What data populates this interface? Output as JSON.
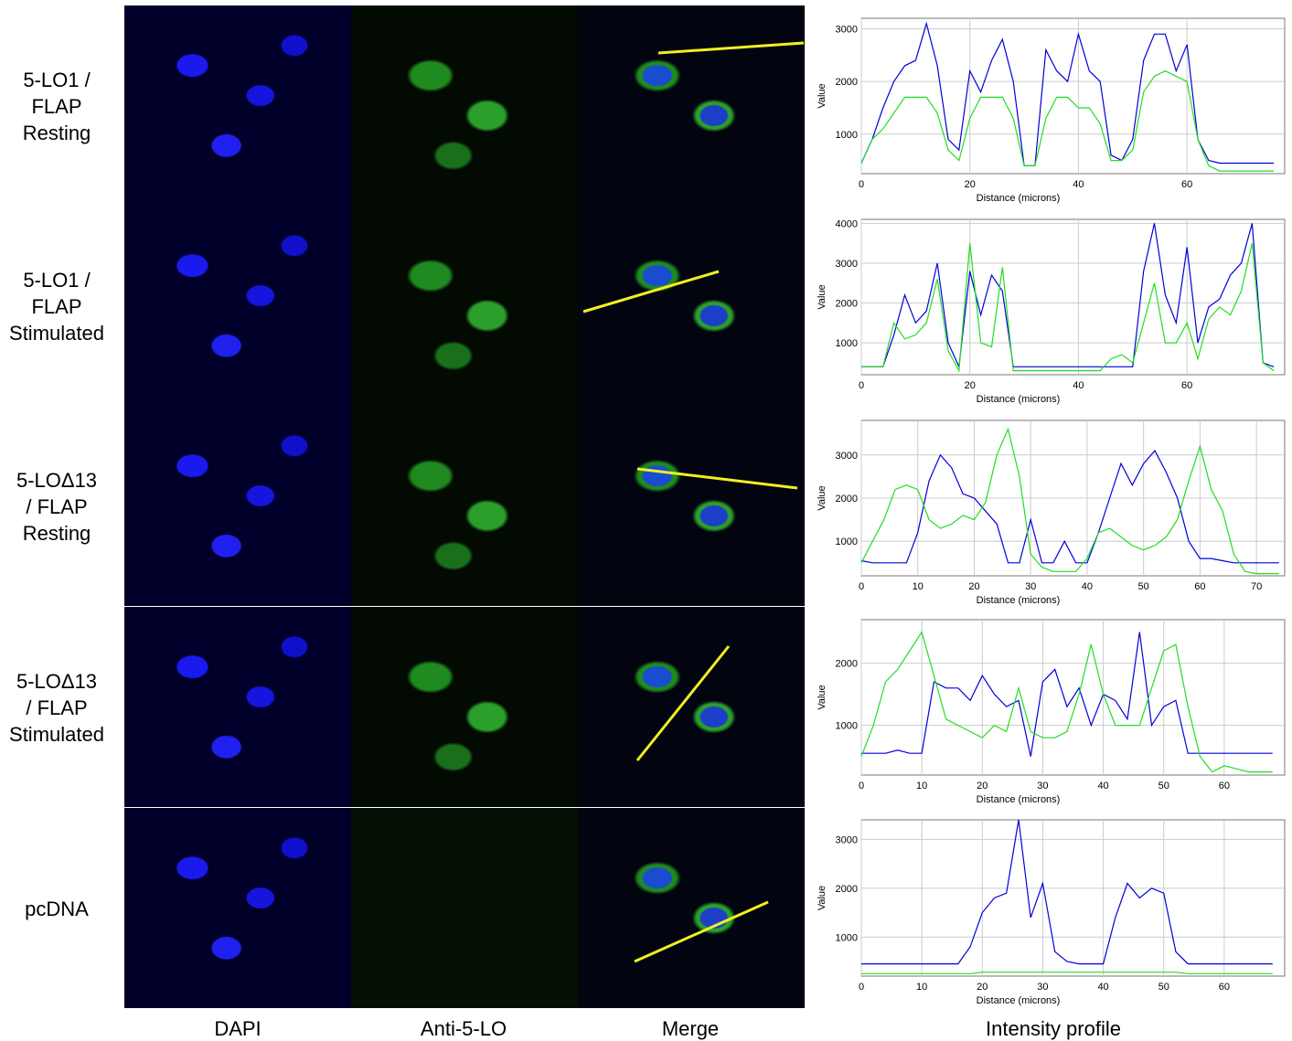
{
  "row_labels": [
    [
      "5-LO1 /",
      "FLAP",
      "Resting"
    ],
    [
      "5-LO1 /",
      "FLAP",
      "Stimulated"
    ],
    [
      "5-LOΔ13",
      "/ FLAP",
      "Resting"
    ],
    [
      "5-LOΔ13",
      "/ FLAP",
      "Stimulated"
    ],
    [
      "pcDNA"
    ]
  ],
  "column_labels": [
    "DAPI",
    "Anti-5-LO",
    "Merge",
    "Intensity profile"
  ],
  "chart_data": [
    {
      "type": "line",
      "x_label": "Distance (microns)",
      "y_label": "Value",
      "grid": true,
      "xlim": [
        0,
        78
      ],
      "ylim": [
        250,
        3200
      ],
      "xticks": [
        0,
        20,
        40,
        60
      ],
      "yticks": [
        1000,
        2000,
        3000
      ],
      "x": [
        0,
        2,
        4,
        6,
        8,
        10,
        12,
        14,
        16,
        18,
        20,
        22,
        24,
        26,
        28,
        30,
        32,
        34,
        36,
        38,
        40,
        42,
        44,
        46,
        48,
        50,
        52,
        54,
        56,
        58,
        60,
        62,
        64,
        66,
        68,
        70,
        72,
        74,
        76
      ],
      "series": [
        {
          "color": "#0000dd",
          "values": [
            450,
            900,
            1500,
            2000,
            2300,
            2400,
            3100,
            2300,
            900,
            700,
            2200,
            1800,
            2400,
            2800,
            2000,
            400,
            400,
            2600,
            2200,
            2000,
            2900,
            2200,
            2000,
            600,
            500,
            900,
            2400,
            2900,
            2900,
            2200,
            2700,
            900,
            500,
            450,
            450,
            450,
            450,
            450,
            450
          ]
        },
        {
          "color": "#22dd22",
          "values": [
            450,
            900,
            1100,
            1400,
            1700,
            1700,
            1700,
            1400,
            700,
            500,
            1300,
            1700,
            1700,
            1700,
            1300,
            400,
            400,
            1300,
            1700,
            1700,
            1500,
            1500,
            1200,
            500,
            500,
            700,
            1800,
            2100,
            2200,
            2100,
            2000,
            900,
            400,
            300,
            300,
            300,
            300,
            300,
            300
          ]
        }
      ]
    },
    {
      "type": "line",
      "x_label": "Distance (microns)",
      "y_label": "Value",
      "grid": true,
      "xlim": [
        0,
        78
      ],
      "ylim": [
        200,
        4100
      ],
      "xticks": [
        0,
        20,
        40,
        60
      ],
      "yticks": [
        1000,
        2000,
        3000,
        4000
      ],
      "x": [
        0,
        2,
        4,
        6,
        8,
        10,
        12,
        14,
        16,
        18,
        20,
        22,
        24,
        26,
        28,
        30,
        32,
        34,
        36,
        38,
        40,
        42,
        44,
        46,
        48,
        50,
        52,
        54,
        56,
        58,
        60,
        62,
        64,
        66,
        68,
        70,
        72,
        74,
        76
      ],
      "series": [
        {
          "color": "#0000dd",
          "values": [
            400,
            400,
            400,
            1200,
            2200,
            1500,
            1800,
            3000,
            1000,
            400,
            2800,
            1700,
            2700,
            2300,
            400,
            400,
            400,
            400,
            400,
            400,
            400,
            400,
            400,
            400,
            400,
            400,
            2800,
            4000,
            2200,
            1500,
            3400,
            1000,
            1900,
            2100,
            2700,
            3000,
            4000,
            500,
            400
          ]
        },
        {
          "color": "#22dd22",
          "values": [
            400,
            400,
            400,
            1500,
            1100,
            1200,
            1500,
            2600,
            800,
            300,
            3500,
            1000,
            900,
            2900,
            300,
            300,
            300,
            300,
            300,
            300,
            300,
            300,
            300,
            600,
            700,
            500,
            1500,
            2500,
            1000,
            1000,
            1500,
            600,
            1600,
            1900,
            1700,
            2300,
            3500,
            500,
            300
          ]
        }
      ]
    },
    {
      "type": "line",
      "x_label": "Distance (microns)",
      "y_label": "Value",
      "grid": true,
      "xlim": [
        0,
        75
      ],
      "ylim": [
        200,
        3800
      ],
      "xticks": [
        0,
        10,
        20,
        30,
        40,
        50,
        60,
        70
      ],
      "yticks": [
        1000,
        2000,
        3000
      ],
      "x": [
        0,
        2,
        4,
        6,
        8,
        10,
        12,
        14,
        16,
        18,
        20,
        22,
        24,
        26,
        28,
        30,
        32,
        34,
        36,
        38,
        40,
        42,
        44,
        46,
        48,
        50,
        52,
        54,
        56,
        58,
        60,
        62,
        64,
        66,
        68,
        70,
        72,
        74
      ],
      "series": [
        {
          "color": "#0000dd",
          "values": [
            550,
            500,
            500,
            500,
            500,
            1200,
            2400,
            3000,
            2700,
            2100,
            2000,
            1700,
            1400,
            500,
            500,
            1500,
            500,
            500,
            1000,
            500,
            500,
            1200,
            2000,
            2800,
            2300,
            2800,
            3100,
            2600,
            2000,
            1000,
            600,
            600,
            550,
            500,
            500,
            500,
            500,
            500
          ]
        },
        {
          "color": "#22dd22",
          "values": [
            500,
            1000,
            1500,
            2200,
            2300,
            2200,
            1500,
            1300,
            1400,
            1600,
            1500,
            1900,
            3000,
            3600,
            2500,
            700,
            400,
            300,
            300,
            300,
            600,
            1200,
            1300,
            1100,
            900,
            800,
            900,
            1100,
            1500,
            2400,
            3200,
            2200,
            1700,
            700,
            300,
            250,
            250,
            250
          ]
        }
      ]
    },
    {
      "type": "line",
      "x_label": "Distance (microns)",
      "y_label": "Value",
      "grid": true,
      "xlim": [
        0,
        70
      ],
      "ylim": [
        200,
        2700
      ],
      "xticks": [
        0,
        10,
        20,
        30,
        40,
        50,
        60
      ],
      "yticks": [
        1000,
        2000
      ],
      "x": [
        0,
        2,
        4,
        6,
        8,
        10,
        12,
        14,
        16,
        18,
        20,
        22,
        24,
        26,
        28,
        30,
        32,
        34,
        36,
        38,
        40,
        42,
        44,
        46,
        48,
        50,
        52,
        54,
        56,
        58,
        60,
        62,
        64,
        66,
        68
      ],
      "series": [
        {
          "color": "#0000dd",
          "values": [
            550,
            550,
            550,
            600,
            550,
            550,
            1700,
            1600,
            1600,
            1400,
            1800,
            1500,
            1300,
            1400,
            500,
            1700,
            1900,
            1300,
            1600,
            1000,
            1500,
            1400,
            1100,
            2500,
            1000,
            1300,
            1400,
            550,
            550,
            550,
            550,
            550,
            550,
            550,
            550
          ]
        },
        {
          "color": "#22dd22",
          "values": [
            500,
            1000,
            1700,
            1900,
            2200,
            2500,
            1800,
            1100,
            1000,
            900,
            800,
            1000,
            900,
            1600,
            900,
            800,
            800,
            900,
            1500,
            2300,
            1500,
            1000,
            1000,
            1000,
            1600,
            2200,
            2300,
            1300,
            500,
            250,
            350,
            300,
            250,
            250,
            250
          ]
        }
      ]
    },
    {
      "type": "line",
      "x_label": "Distance (microns)",
      "y_label": "Value",
      "grid": true,
      "xlim": [
        0,
        70
      ],
      "ylim": [
        200,
        3400
      ],
      "xticks": [
        0,
        10,
        20,
        30,
        40,
        50,
        60
      ],
      "yticks": [
        1000,
        2000,
        3000
      ],
      "x": [
        0,
        2,
        4,
        6,
        8,
        10,
        12,
        14,
        16,
        18,
        20,
        22,
        24,
        26,
        28,
        30,
        32,
        34,
        36,
        38,
        40,
        42,
        44,
        46,
        48,
        50,
        52,
        54,
        56,
        58,
        60,
        62,
        64,
        66,
        68
      ],
      "series": [
        {
          "color": "#0000dd",
          "values": [
            450,
            450,
            450,
            450,
            450,
            450,
            450,
            450,
            450,
            800,
            1500,
            1800,
            1900,
            3400,
            1400,
            2100,
            700,
            500,
            450,
            450,
            450,
            1400,
            2100,
            1800,
            2000,
            1900,
            700,
            450,
            450,
            450,
            450,
            450,
            450,
            450,
            450
          ]
        },
        {
          "color": "#22dd22",
          "values": [
            250,
            250,
            250,
            250,
            250,
            250,
            250,
            250,
            250,
            250,
            280,
            280,
            280,
            280,
            280,
            280,
            280,
            280,
            280,
            280,
            280,
            280,
            280,
            280,
            280,
            280,
            280,
            250,
            250,
            250,
            250,
            250,
            250,
            250,
            250
          ]
        }
      ]
    }
  ]
}
